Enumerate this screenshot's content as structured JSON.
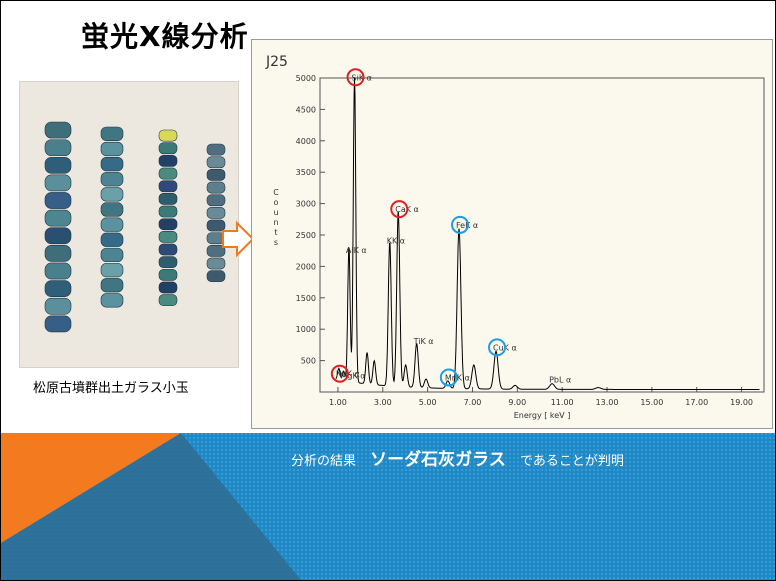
{
  "slide": {
    "title": "蛍光X線分析",
    "photo_caption": "松原古墳群出土ガラス小玉"
  },
  "banner": {
    "prefix": "分析の結果",
    "highlight": "ソーダ石灰ガラス",
    "suffix": "であることが判明"
  },
  "chart_data": {
    "type": "line",
    "title": "J25",
    "xlabel": "Energy [ keV ]",
    "ylabel": "Counts",
    "xlim": [
      0.2,
      20.0
    ],
    "ylim": [
      0,
      5000
    ],
    "x_ticks": [
      "1.00",
      "3.00",
      "5.00",
      "7.00",
      "9.00",
      "11.00",
      "13.00",
      "15.00",
      "17.00",
      "19.00"
    ],
    "y_ticks": [
      "500",
      "1000",
      "1500",
      "2000",
      "2500",
      "3000",
      "3500",
      "4000",
      "4500",
      "5000"
    ],
    "peaks": [
      {
        "label": "NaK α",
        "energy": 1.04,
        "counts": 180,
        "circle": "red"
      },
      {
        "label": "MgK α",
        "energy": 1.25,
        "counts": 150
      },
      {
        "label": "AlK α",
        "energy": 1.49,
        "counts": 2150
      },
      {
        "label": "SiK α",
        "energy": 1.74,
        "counts": 4900,
        "circle": "red"
      },
      {
        "label": "KK α",
        "energy": 3.31,
        "counts": 2300
      },
      {
        "label": "CaK α",
        "energy": 3.69,
        "counts": 2800,
        "circle": "red"
      },
      {
        "label": "TiK α",
        "energy": 4.51,
        "counts": 700
      },
      {
        "label": "MnK α",
        "energy": 5.9,
        "counts": 120,
        "circle": "blue"
      },
      {
        "label": "FeK α",
        "energy": 6.4,
        "counts": 2550,
        "circle": "blue"
      },
      {
        "label": "CuK α",
        "energy": 8.05,
        "counts": 600,
        "circle": "blue"
      },
      {
        "label": "PbL α",
        "energy": 10.55,
        "counts": 90
      }
    ],
    "minor_peaks": [
      {
        "energy": 2.3,
        "counts": 500
      },
      {
        "energy": 2.62,
        "counts": 380
      },
      {
        "energy": 4.02,
        "counts": 350
      },
      {
        "energy": 4.93,
        "counts": 140
      },
      {
        "energy": 7.06,
        "counts": 380
      },
      {
        "energy": 8.9,
        "counts": 60
      },
      {
        "energy": 12.61,
        "counts": 30
      }
    ],
    "colors": {
      "red_circle": "#e02020",
      "blue_circle": "#1e9de0",
      "trace": "#000000"
    }
  }
}
